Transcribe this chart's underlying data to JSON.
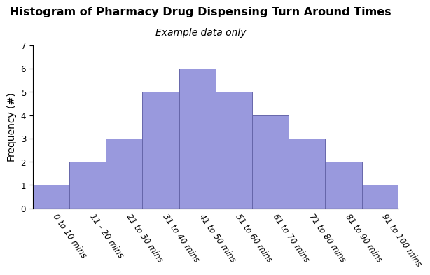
{
  "title": "Histogram of Pharmacy Drug Dispensing Turn Around Times",
  "subtitle": "Example data only",
  "ylabel": "Frequency (#)",
  "categories": [
    "0 to 10 mins",
    "11 - 20 mins",
    "21 to 30 mins",
    "31 to 40 mins",
    "41 to 50 mins",
    "51 to 60 mins",
    "61 to 70 mins",
    "71 to 80 mins",
    "81 to 90 mins",
    "91 to 100 mins"
  ],
  "values": [
    1,
    2,
    3,
    5,
    6,
    5,
    4,
    3,
    2,
    1
  ],
  "bar_color": "#9999DD",
  "bar_edge_color": "#6666AA",
  "ylim": [
    0,
    7
  ],
  "yticks": [
    0,
    1,
    2,
    3,
    4,
    5,
    6,
    7
  ],
  "title_fontsize": 11.5,
  "subtitle_fontsize": 10,
  "ylabel_fontsize": 10,
  "tick_fontsize": 8.5,
  "background_color": "#ffffff"
}
